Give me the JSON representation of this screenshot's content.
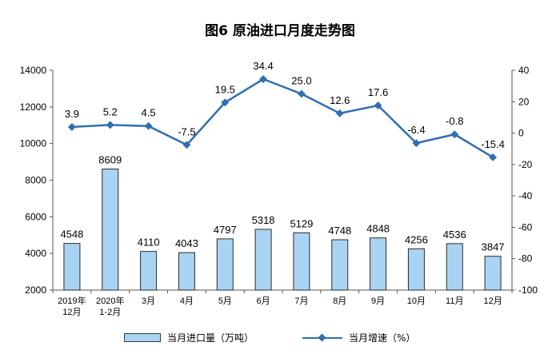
{
  "title": "图6  原油进口月度走势图",
  "chart_data": {
    "type": "bar+line",
    "categories": [
      [
        "2019年",
        "12月"
      ],
      [
        "2020年",
        "1-2月"
      ],
      [
        "3月"
      ],
      [
        "4月"
      ],
      [
        "5月"
      ],
      [
        "6月"
      ],
      [
        "7月"
      ],
      [
        "8月"
      ],
      [
        "9月"
      ],
      [
        "10月"
      ],
      [
        "11月"
      ],
      [
        "12月"
      ]
    ],
    "series": [
      {
        "name": "当月进口量（万吨）",
        "type": "bar",
        "axis": "left",
        "values": [
          4548,
          8609,
          4110,
          4043,
          4797,
          5318,
          5129,
          4748,
          4848,
          4256,
          4536,
          3847
        ],
        "color": "#a9d3f3"
      },
      {
        "name": "当月增速（%）",
        "type": "line",
        "axis": "right",
        "values": [
          3.9,
          5.2,
          4.5,
          -7.5,
          19.5,
          34.4,
          25.0,
          12.6,
          17.6,
          -6.4,
          -0.8,
          -15.4
        ],
        "labels": [
          "3.9",
          "5.2",
          "4.5",
          "-7.5",
          "19.5",
          "34.4",
          "25.0",
          "12.6",
          "17.6",
          "-6.4",
          "-0.8",
          "-15.4"
        ],
        "color": "#2f6fb2"
      }
    ],
    "left_axis": {
      "ylim": [
        2000,
        14000
      ],
      "ticks": [
        2000,
        4000,
        6000,
        8000,
        10000,
        12000,
        14000
      ]
    },
    "right_axis": {
      "ylim": [
        -100,
        40
      ],
      "ticks": [
        40,
        20,
        0,
        -20,
        -40,
        -60,
        -80,
        -100
      ]
    },
    "legend": {
      "position": "bottom"
    },
    "grid": false
  }
}
